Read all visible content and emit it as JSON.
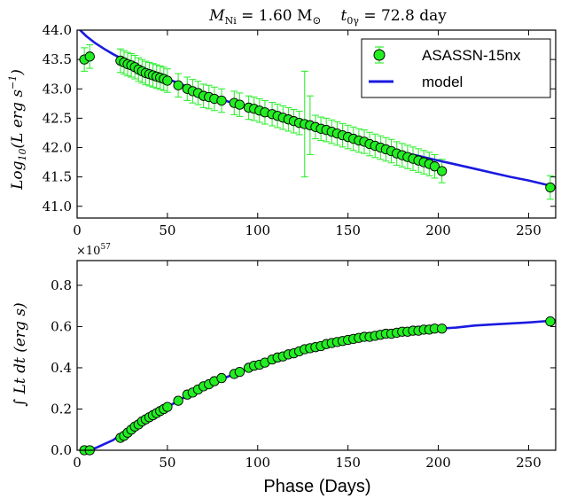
{
  "figure": {
    "title_ni_label": "M",
    "title_ni_sub": "Ni",
    "title_ni_value": " = 1.60 M",
    "title_ni_unit_sym": "⊙",
    "title_t_label": "t",
    "title_t_sub": "0γ",
    "title_t_value": " = 72.8 day",
    "xlabel": "Phase (Days)"
  },
  "colors": {
    "marker_fill": "#22ee22",
    "marker_edge": "#000000",
    "errorbar": "#33ee33",
    "model_line": "#1a1ae0"
  },
  "legend": {
    "data_label": "ASASSN-15nx",
    "model_label": "model",
    "position": "top-right"
  },
  "chart_data": [
    {
      "type": "scatter",
      "title": "",
      "xlabel": "",
      "ylabel": "Log10(L erg s^-1)",
      "ylabel_main": "Log",
      "ylabel_sub": "10",
      "ylabel_rest": "(L erg s",
      "ylabel_sup": "−1",
      "ylabel_close": ")",
      "xlim": [
        0,
        265
      ],
      "ylim": [
        40.8,
        44.0
      ],
      "xticks": [
        "0",
        "50",
        "100",
        "150",
        "200",
        "250"
      ],
      "xtick_values": [
        0,
        50,
        100,
        150,
        200,
        250
      ],
      "yticks": [
        "41.0",
        "41.5",
        "42.0",
        "42.5",
        "43.0",
        "43.5",
        "44.0"
      ],
      "ytick_values": [
        41.0,
        41.5,
        42.0,
        42.5,
        43.0,
        43.5,
        44.0
      ],
      "grid": false,
      "legend": "top-right",
      "series": [
        {
          "name": "ASASSN-15nx",
          "kind": "points_with_errors",
          "x": [
            4,
            7,
            24,
            26,
            28,
            30,
            32,
            34,
            36,
            38,
            40,
            42,
            44,
            46,
            48,
            50,
            56,
            61,
            64,
            67,
            70,
            73,
            76,
            80,
            87,
            90,
            95,
            98,
            101,
            104,
            108,
            111,
            114,
            117,
            120,
            123,
            126,
            129,
            132,
            135,
            138,
            141,
            144,
            147,
            150,
            153,
            156,
            159,
            162,
            165,
            168,
            171,
            174,
            177,
            180,
            183,
            186,
            189,
            192,
            195,
            198,
            202,
            262
          ],
          "y": [
            43.5,
            43.55,
            43.48,
            43.45,
            43.42,
            43.4,
            43.37,
            43.33,
            43.3,
            43.27,
            43.25,
            43.23,
            43.21,
            43.19,
            43.17,
            43.14,
            43.06,
            43.0,
            42.96,
            42.93,
            42.88,
            42.86,
            42.83,
            42.8,
            42.76,
            42.73,
            42.68,
            42.66,
            42.63,
            42.6,
            42.57,
            42.54,
            42.51,
            42.48,
            42.45,
            42.42,
            42.4,
            42.38,
            42.35,
            42.32,
            42.3,
            42.27,
            42.24,
            42.21,
            42.18,
            42.15,
            42.12,
            42.1,
            42.06,
            42.03,
            42.0,
            41.97,
            41.94,
            41.9,
            41.87,
            41.84,
            41.81,
            41.78,
            41.75,
            41.72,
            41.68,
            41.6,
            41.32
          ],
          "yerr": [
            0.2,
            0.2,
            0.2,
            0.2,
            0.2,
            0.2,
            0.2,
            0.2,
            0.2,
            0.2,
            0.2,
            0.2,
            0.2,
            0.2,
            0.2,
            0.2,
            0.2,
            0.2,
            0.2,
            0.2,
            0.2,
            0.2,
            0.2,
            0.2,
            0.2,
            0.2,
            0.2,
            0.2,
            0.2,
            0.2,
            0.2,
            0.2,
            0.2,
            0.2,
            0.2,
            0.2,
            0.9,
            0.5,
            0.2,
            0.2,
            0.2,
            0.2,
            0.2,
            0.2,
            0.2,
            0.2,
            0.2,
            0.2,
            0.2,
            0.2,
            0.2,
            0.2,
            0.2,
            0.2,
            0.2,
            0.2,
            0.2,
            0.2,
            0.2,
            0.2,
            0.2,
            0.2,
            0.2
          ]
        },
        {
          "name": "model",
          "kind": "line",
          "x": [
            0,
            5,
            10,
            15,
            20,
            25,
            30,
            40,
            50,
            60,
            70,
            80,
            90,
            100,
            110,
            120,
            130,
            140,
            150,
            160,
            170,
            180,
            190,
            200,
            210,
            220,
            230,
            240,
            250,
            265
          ],
          "y": [
            44.05,
            43.9,
            43.78,
            43.68,
            43.59,
            43.51,
            43.44,
            43.3,
            43.17,
            43.05,
            42.93,
            42.82,
            42.72,
            42.63,
            42.53,
            42.43,
            42.34,
            42.25,
            42.16,
            42.08,
            42.0,
            41.92,
            41.85,
            41.78,
            41.71,
            41.64,
            41.57,
            41.5,
            41.44,
            41.33
          ]
        }
      ]
    },
    {
      "type": "scatter",
      "title": "",
      "xlabel": "Phase (Days)",
      "ylabel": "∫ Lt dt (erg s)",
      "ylabel_int": "∫",
      "ylabel_rest": " Lt dt (erg s)",
      "y_multiplier": "×10",
      "y_multiplier_exp": "57",
      "xlim": [
        0,
        265
      ],
      "ylim": [
        0.0,
        0.92
      ],
      "xticks": [
        "0",
        "50",
        "100",
        "150",
        "200",
        "250"
      ],
      "xtick_values": [
        0,
        50,
        100,
        150,
        200,
        250
      ],
      "yticks": [
        "0.0",
        "0.2",
        "0.4",
        "0.6",
        "0.8"
      ],
      "ytick_values": [
        0.0,
        0.2,
        0.4,
        0.6,
        0.8
      ],
      "grid": false,
      "series": [
        {
          "name": "ASASSN-15nx",
          "kind": "points",
          "x": [
            4,
            7,
            24,
            26,
            28,
            30,
            32,
            34,
            36,
            38,
            40,
            42,
            44,
            46,
            48,
            50,
            56,
            61,
            64,
            67,
            70,
            73,
            76,
            80,
            87,
            90,
            95,
            98,
            101,
            104,
            108,
            111,
            114,
            117,
            120,
            123,
            126,
            129,
            132,
            135,
            138,
            141,
            144,
            147,
            150,
            153,
            156,
            159,
            162,
            165,
            168,
            171,
            174,
            177,
            180,
            183,
            186,
            189,
            192,
            195,
            198,
            202,
            262
          ],
          "y": [
            0.0,
            0.0,
            0.06,
            0.07,
            0.085,
            0.1,
            0.115,
            0.125,
            0.14,
            0.15,
            0.16,
            0.17,
            0.18,
            0.19,
            0.2,
            0.21,
            0.24,
            0.27,
            0.28,
            0.295,
            0.31,
            0.32,
            0.335,
            0.35,
            0.37,
            0.38,
            0.4,
            0.41,
            0.415,
            0.425,
            0.44,
            0.45,
            0.455,
            0.465,
            0.47,
            0.48,
            0.49,
            0.495,
            0.5,
            0.505,
            0.515,
            0.52,
            0.525,
            0.53,
            0.535,
            0.54,
            0.545,
            0.55,
            0.55,
            0.555,
            0.56,
            0.565,
            0.565,
            0.57,
            0.575,
            0.575,
            0.58,
            0.58,
            0.585,
            0.585,
            0.59,
            0.59,
            0.625
          ]
        },
        {
          "name": "model",
          "kind": "line",
          "x": [
            5,
            10,
            20,
            30,
            40,
            50,
            60,
            70,
            80,
            90,
            100,
            110,
            120,
            130,
            140,
            150,
            160,
            170,
            180,
            190,
            200,
            210,
            220,
            230,
            240,
            250,
            265
          ],
          "y": [
            0.0,
            0.01,
            0.05,
            0.11,
            0.16,
            0.21,
            0.26,
            0.305,
            0.345,
            0.38,
            0.41,
            0.44,
            0.465,
            0.49,
            0.51,
            0.53,
            0.545,
            0.555,
            0.57,
            0.58,
            0.59,
            0.595,
            0.605,
            0.61,
            0.615,
            0.62,
            0.63
          ]
        }
      ]
    }
  ]
}
